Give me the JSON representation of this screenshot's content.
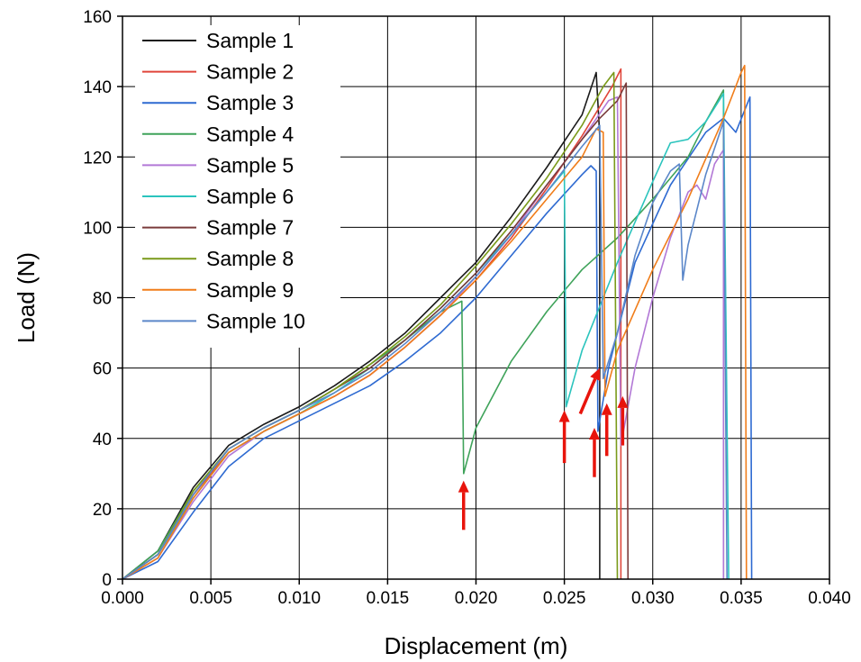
{
  "chart_data": {
    "type": "line",
    "title": "",
    "xlabel": "Displacement (m)",
    "ylabel": "Load (N)",
    "xlim": [
      0,
      0.04
    ],
    "ylim": [
      0,
      160
    ],
    "xticks": [
      "0.000",
      "0.005",
      "0.010",
      "0.015",
      "0.020",
      "0.025",
      "0.030",
      "0.035",
      "0.040"
    ],
    "yticks": [
      "0",
      "20",
      "40",
      "60",
      "80",
      "100",
      "120",
      "140",
      "160"
    ],
    "grid": true,
    "legend_position": "top-left",
    "series": [
      {
        "name": "Sample 1",
        "color": "#1a1a1a",
        "points": [
          [
            0,
            0
          ],
          [
            0.002,
            8
          ],
          [
            0.004,
            26
          ],
          [
            0.006,
            38
          ],
          [
            0.008,
            44
          ],
          [
            0.01,
            49
          ],
          [
            0.012,
            55
          ],
          [
            0.014,
            62
          ],
          [
            0.016,
            70
          ],
          [
            0.018,
            80
          ],
          [
            0.02,
            90
          ],
          [
            0.022,
            103
          ],
          [
            0.024,
            117
          ],
          [
            0.026,
            132
          ],
          [
            0.0268,
            144
          ],
          [
            0.027,
            126
          ],
          [
            0.027,
            0
          ]
        ]
      },
      {
        "name": "Sample 2",
        "color": "#e0453a",
        "points": [
          [
            0,
            0
          ],
          [
            0.002,
            7
          ],
          [
            0.004,
            24
          ],
          [
            0.006,
            36
          ],
          [
            0.008,
            42
          ],
          [
            0.01,
            47
          ],
          [
            0.012,
            52
          ],
          [
            0.014,
            58
          ],
          [
            0.016,
            66
          ],
          [
            0.018,
            75
          ],
          [
            0.02,
            85
          ],
          [
            0.022,
            97
          ],
          [
            0.024,
            111
          ],
          [
            0.026,
            126
          ],
          [
            0.0277,
            140
          ],
          [
            0.0282,
            145
          ],
          [
            0.0282,
            0
          ]
        ]
      },
      {
        "name": "Sample 3",
        "color": "#2e6ad1",
        "points": [
          [
            0,
            0
          ],
          [
            0.002,
            5
          ],
          [
            0.004,
            19
          ],
          [
            0.006,
            32
          ],
          [
            0.008,
            40
          ],
          [
            0.01,
            45
          ],
          [
            0.012,
            50
          ],
          [
            0.014,
            55
          ],
          [
            0.016,
            62
          ],
          [
            0.018,
            70
          ],
          [
            0.02,
            80
          ],
          [
            0.022,
            92
          ],
          [
            0.024,
            104
          ],
          [
            0.026,
            115
          ],
          [
            0.0265,
            117.5
          ],
          [
            0.0268,
            116
          ],
          [
            0.0269,
            42
          ],
          [
            0.0275,
            60
          ],
          [
            0.029,
            90
          ],
          [
            0.031,
            112
          ],
          [
            0.033,
            127
          ],
          [
            0.034,
            131
          ],
          [
            0.0347,
            127
          ],
          [
            0.0355,
            137
          ],
          [
            0.0356,
            0
          ]
        ]
      },
      {
        "name": "Sample 4",
        "color": "#3fa35a",
        "points": [
          [
            0,
            0
          ],
          [
            0.002,
            8
          ],
          [
            0.004,
            25
          ],
          [
            0.006,
            37
          ],
          [
            0.008,
            43
          ],
          [
            0.01,
            48
          ],
          [
            0.012,
            54
          ],
          [
            0.014,
            61
          ],
          [
            0.016,
            68
          ],
          [
            0.018,
            76
          ],
          [
            0.0192,
            79
          ],
          [
            0.0193,
            30
          ],
          [
            0.02,
            43
          ],
          [
            0.022,
            62
          ],
          [
            0.024,
            76
          ],
          [
            0.026,
            88
          ],
          [
            0.028,
            97
          ],
          [
            0.03,
            108
          ],
          [
            0.032,
            120
          ],
          [
            0.033,
            130
          ],
          [
            0.034,
            139
          ],
          [
            0.034,
            0
          ]
        ]
      },
      {
        "name": "Sample 5",
        "color": "#b278d6",
        "points": [
          [
            0,
            0
          ],
          [
            0.002,
            6
          ],
          [
            0.004,
            22
          ],
          [
            0.006,
            35
          ],
          [
            0.008,
            42
          ],
          [
            0.01,
            47
          ],
          [
            0.012,
            52
          ],
          [
            0.014,
            58
          ],
          [
            0.016,
            66
          ],
          [
            0.018,
            75
          ],
          [
            0.02,
            86
          ],
          [
            0.022,
            98
          ],
          [
            0.024,
            112
          ],
          [
            0.026,
            125
          ],
          [
            0.0275,
            136
          ],
          [
            0.028,
            137
          ],
          [
            0.0282,
            38
          ],
          [
            0.029,
            60
          ],
          [
            0.03,
            80
          ],
          [
            0.031,
            97
          ],
          [
            0.032,
            110
          ],
          [
            0.0325,
            112
          ],
          [
            0.033,
            108
          ],
          [
            0.0335,
            118
          ],
          [
            0.034,
            122
          ],
          [
            0.034,
            0
          ]
        ]
      },
      {
        "name": "Sample 6",
        "color": "#2bc4bd",
        "points": [
          [
            0,
            0
          ],
          [
            0.002,
            7
          ],
          [
            0.004,
            23
          ],
          [
            0.006,
            36
          ],
          [
            0.008,
            42
          ],
          [
            0.01,
            47
          ],
          [
            0.012,
            53
          ],
          [
            0.014,
            60
          ],
          [
            0.016,
            68
          ],
          [
            0.018,
            77
          ],
          [
            0.02,
            87
          ],
          [
            0.022,
            98
          ],
          [
            0.024,
            110
          ],
          [
            0.025,
            116
          ],
          [
            0.0251,
            49
          ],
          [
            0.026,
            65
          ],
          [
            0.028,
            90
          ],
          [
            0.03,
            113
          ],
          [
            0.031,
            124
          ],
          [
            0.032,
            125
          ],
          [
            0.033,
            130
          ],
          [
            0.034,
            138
          ],
          [
            0.0343,
            0
          ]
        ]
      },
      {
        "name": "Sample 7",
        "color": "#7a3b3b",
        "points": [
          [
            0,
            0
          ],
          [
            0.002,
            7
          ],
          [
            0.004,
            24
          ],
          [
            0.006,
            37
          ],
          [
            0.008,
            43
          ],
          [
            0.01,
            48
          ],
          [
            0.012,
            54
          ],
          [
            0.014,
            60
          ],
          [
            0.016,
            68
          ],
          [
            0.018,
            77
          ],
          [
            0.02,
            87
          ],
          [
            0.022,
            99
          ],
          [
            0.024,
            112
          ],
          [
            0.026,
            125
          ],
          [
            0.027,
            131
          ],
          [
            0.028,
            136
          ],
          [
            0.0285,
            141
          ],
          [
            0.0286,
            0
          ]
        ]
      },
      {
        "name": "Sample 8",
        "color": "#7a9a1a",
        "points": [
          [
            0,
            0
          ],
          [
            0.002,
            7
          ],
          [
            0.004,
            25
          ],
          [
            0.006,
            37
          ],
          [
            0.008,
            43
          ],
          [
            0.01,
            48
          ],
          [
            0.012,
            54
          ],
          [
            0.014,
            61
          ],
          [
            0.016,
            69
          ],
          [
            0.018,
            78
          ],
          [
            0.02,
            89
          ],
          [
            0.022,
            101
          ],
          [
            0.024,
            114
          ],
          [
            0.026,
            129
          ],
          [
            0.0272,
            140
          ],
          [
            0.0278,
            144
          ],
          [
            0.028,
            0
          ]
        ]
      },
      {
        "name": "Sample 9",
        "color": "#f07d1a",
        "points": [
          [
            0,
            0
          ],
          [
            0.002,
            6
          ],
          [
            0.004,
            23
          ],
          [
            0.006,
            36
          ],
          [
            0.008,
            42
          ],
          [
            0.01,
            47
          ],
          [
            0.012,
            52
          ],
          [
            0.014,
            58
          ],
          [
            0.016,
            66
          ],
          [
            0.018,
            75
          ],
          [
            0.02,
            85
          ],
          [
            0.022,
            96
          ],
          [
            0.024,
            108
          ],
          [
            0.026,
            120
          ],
          [
            0.0268,
            128
          ],
          [
            0.0272,
            127
          ],
          [
            0.0273,
            52
          ],
          [
            0.028,
            65
          ],
          [
            0.03,
            88
          ],
          [
            0.032,
            108
          ],
          [
            0.034,
            131
          ],
          [
            0.035,
            144
          ],
          [
            0.0352,
            146
          ],
          [
            0.0353,
            0
          ]
        ]
      },
      {
        "name": "Sample 10",
        "color": "#5b87c9",
        "points": [
          [
            0,
            0
          ],
          [
            0.002,
            7
          ],
          [
            0.004,
            24
          ],
          [
            0.006,
            37
          ],
          [
            0.008,
            43
          ],
          [
            0.01,
            48
          ],
          [
            0.012,
            53
          ],
          [
            0.014,
            59
          ],
          [
            0.016,
            67
          ],
          [
            0.018,
            76
          ],
          [
            0.02,
            86
          ],
          [
            0.022,
            98
          ],
          [
            0.024,
            110
          ],
          [
            0.026,
            123
          ],
          [
            0.027,
            129
          ],
          [
            0.0272,
            57
          ],
          [
            0.028,
            70
          ],
          [
            0.029,
            92
          ],
          [
            0.03,
            107
          ],
          [
            0.031,
            116
          ],
          [
            0.0315,
            118
          ],
          [
            0.0317,
            85
          ],
          [
            0.032,
            95
          ],
          [
            0.033,
            115
          ],
          [
            0.034,
            130
          ],
          [
            0.0342,
            0
          ]
        ]
      }
    ],
    "arrows": [
      {
        "tail": [
          0.0193,
          14
        ],
        "head": [
          0.0193,
          28
        ],
        "color": "#e8140c"
      },
      {
        "tail": [
          0.025,
          33
        ],
        "head": [
          0.025,
          48
        ],
        "color": "#e8140c"
      },
      {
        "tail": [
          0.0267,
          29
        ],
        "head": [
          0.0267,
          43
        ],
        "color": "#e8140c"
      },
      {
        "tail": [
          0.0259,
          47
        ],
        "head": [
          0.027,
          60
        ],
        "color": "#e8140c"
      },
      {
        "tail": [
          0.0274,
          35
        ],
        "head": [
          0.0274,
          50
        ],
        "color": "#e8140c"
      },
      {
        "tail": [
          0.0283,
          38
        ],
        "head": [
          0.0283,
          52
        ],
        "color": "#e8140c"
      }
    ]
  }
}
